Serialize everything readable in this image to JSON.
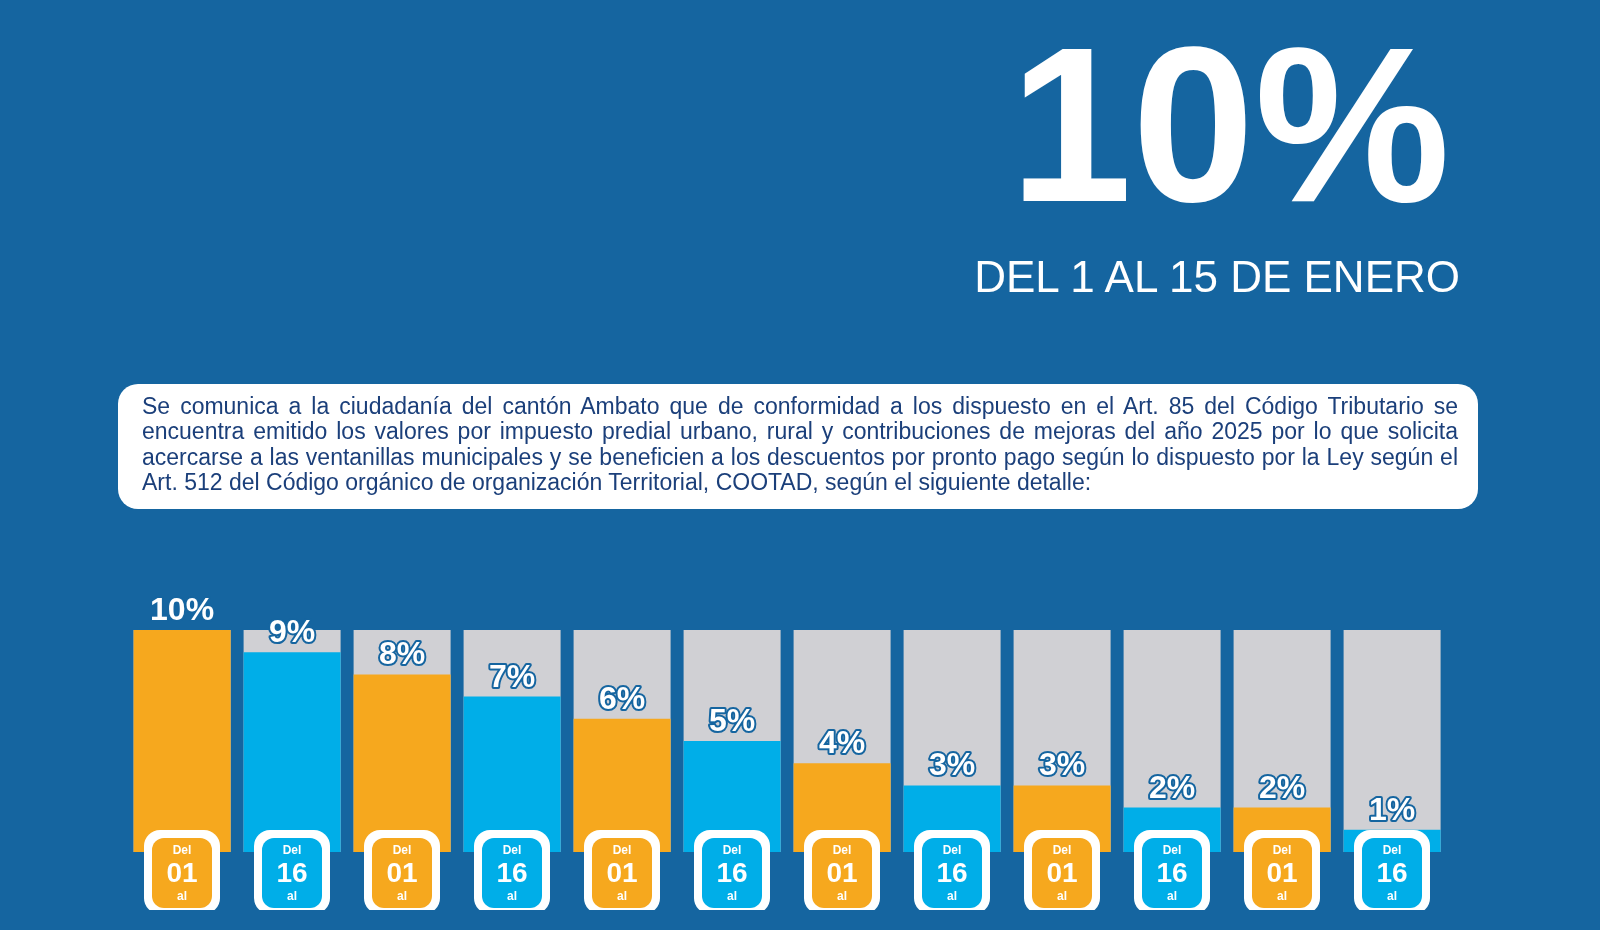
{
  "chart_data": {
    "type": "bar",
    "title": "10%",
    "subtitle": "DEL 1 AL 15 DE ENERO",
    "annotations": [
      "Se comunica a la ciudadanía del cantón Ambato que de conformidad a los dispuesto en el Art. 85 del Código Tributario se encuentra emitido los valores por impuesto predial urbano, rural y contribuciones de mejoras del año 2025 por lo que solicita acercarse a las ventanillas municipales y se beneficien a los descuentos por pronto pago según lo dispuesto por la Ley según el Art. 512 del Código orgánico de organización Territorial, COOTAD, según el siguiente detalle:"
    ],
    "categories": [
      "Del 01 al",
      "Del 16 al",
      "Del 01 al",
      "Del 16 al",
      "Del 01 al",
      "Del 16 al",
      "Del 01 al",
      "Del 16 al",
      "Del 01 al",
      "Del 16 al",
      "Del 01 al",
      "Del 16 al"
    ],
    "values": [
      10,
      9,
      8,
      7,
      6,
      5,
      4,
      3,
      3,
      2,
      2,
      1
    ],
    "value_labels": [
      "10%",
      "9%",
      "8%",
      "7%",
      "6%",
      "5%",
      "4%",
      "3%",
      "3%",
      "2%",
      "2%",
      "1%"
    ],
    "colors": [
      "#f6a81e",
      "#00aee8",
      "#f6a81e",
      "#00aee8",
      "#f6a81e",
      "#00aee8",
      "#f6a81e",
      "#00aee8",
      "#f6a81e",
      "#00aee8",
      "#f6a81e",
      "#00aee8"
    ],
    "legend": false,
    "grid": false
  }
}
